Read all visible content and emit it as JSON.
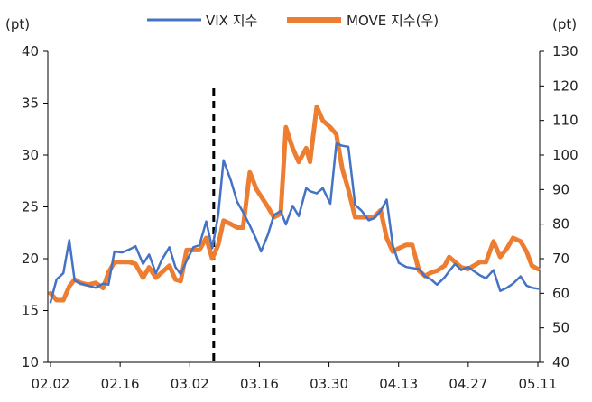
{
  "chart_data": {
    "type": "line",
    "left_unit": "(pt)",
    "right_unit": "(pt)",
    "y_left": {
      "ticks": [
        10,
        15,
        20,
        25,
        30,
        35,
        40
      ],
      "range": [
        10,
        40
      ]
    },
    "y_right": {
      "ticks": [
        40,
        50,
        60,
        70,
        80,
        90,
        100,
        110,
        120,
        130
      ],
      "range": [
        40,
        130
      ]
    },
    "x_ticks": [
      "02.02",
      "02.16",
      "03.02",
      "03.16",
      "03.30",
      "04.13",
      "04.27",
      "05.11"
    ],
    "marker": {
      "label": "03.02 (dashed reference line)",
      "x": 21.7
    },
    "legend": [
      "VIX 지수",
      "MOVE 지수(우)"
    ],
    "colors": {
      "vix": "#4472C4",
      "move": "#ED7D31",
      "marker": "#000000",
      "axis": "#000000"
    },
    "series": [
      {
        "name": "VIX 지수",
        "axis": "left",
        "x": [
          0,
          0.8,
          1.7,
          2.5,
          3.2,
          4,
          5,
          6,
          7,
          7.7,
          8.5,
          9.5,
          10.5,
          11.3,
          12.3,
          13.1,
          14,
          14.8,
          15.8,
          16.6,
          17.3,
          18.1,
          19,
          19.8,
          20.7,
          21.5,
          22.3,
          23,
          24,
          24.8,
          25.6,
          26.5,
          27.4,
          28,
          28.9,
          29.7,
          30.6,
          31.3,
          32.2,
          33,
          34,
          34.5,
          35.4,
          36.2,
          37.2,
          38,
          38.8,
          39.6,
          40.5,
          41.4,
          42.3,
          43,
          43.9,
          44.7,
          45.5,
          46.3,
          47.3,
          48.1,
          49,
          49.8,
          50.6,
          51.4,
          52.4,
          53,
          53.8,
          54.6,
          55.5,
          56.3,
          57.1,
          57.9,
          58.9,
          59.8,
          60.7,
          61.5,
          62.5,
          63.3,
          64,
          64.8
        ],
        "values": [
          15.8,
          18,
          18.6,
          21.8,
          17.9,
          17.6,
          17.4,
          17.2,
          17.6,
          17.5,
          20.7,
          20.6,
          20.9,
          21.2,
          19.5,
          20.4,
          18.6,
          19.9,
          21.1,
          19.2,
          18.5,
          19.8,
          21.1,
          21.3,
          23.6,
          21,
          24.2,
          29.5,
          27.5,
          25.5,
          24.5,
          23.2,
          21.8,
          20.7,
          22.3,
          24.2,
          24.6,
          23.3,
          25.1,
          24.1,
          26.8,
          26.5,
          26.3,
          26.8,
          25.3,
          31.1,
          30.9,
          30.8,
          25.2,
          24.6,
          23.7,
          23.9,
          24.6,
          25.7,
          21.3,
          19.6,
          19.2,
          19.1,
          19,
          18.3,
          18,
          17.5,
          18.2,
          18.8,
          19.5,
          18.9,
          19.2,
          18.8,
          18.4,
          18.1,
          18.9,
          16.9,
          17.2,
          17.6,
          18.3,
          17.4,
          17.2,
          17.1
        ]
      },
      {
        "name": "MOVE 지수(우)",
        "axis": "right",
        "x": [
          0,
          0.8,
          1.7,
          2.5,
          3.2,
          4,
          5,
          6,
          7,
          7.7,
          8.5,
          9.5,
          10.5,
          11.3,
          12.3,
          13.1,
          14,
          14.8,
          15.8,
          16.6,
          17.3,
          18.1,
          19,
          19.8,
          20.7,
          21.5,
          22.3,
          23,
          24,
          24.8,
          25.6,
          26.5,
          27.4,
          28,
          28.9,
          29.7,
          30.6,
          31.3,
          32.2,
          33,
          34,
          34.5,
          35.4,
          36.2,
          37.2,
          38,
          38.8,
          39.6,
          40.5,
          41.4,
          42.3,
          43,
          43.9,
          44.7,
          45.5,
          46.3,
          47.3,
          48.1,
          49,
          49.8,
          50.6,
          51.4,
          52.4,
          53,
          53.8,
          54.6,
          55.5,
          56.3,
          57.1,
          57.9,
          58.9,
          59.8,
          60.7,
          61.5,
          62.5,
          63.3,
          64,
          64.8
        ],
        "values": [
          60,
          58,
          58,
          62,
          64,
          63,
          62.5,
          63,
          61.5,
          66,
          69,
          69,
          69,
          68.5,
          64.5,
          67.5,
          64.5,
          66,
          68,
          64,
          63.5,
          72.5,
          72.5,
          72.5,
          76,
          70,
          74,
          81,
          80,
          79,
          79,
          95,
          90,
          88,
          85,
          82,
          83,
          108,
          102,
          98,
          102,
          98,
          114,
          110,
          108,
          106,
          96,
          90,
          82,
          82,
          82,
          82,
          84,
          76,
          72,
          73,
          74,
          74,
          66.5,
          65,
          66,
          66.5,
          68,
          70.5,
          69,
          67.5,
          67,
          68,
          69,
          69,
          75,
          70.5,
          73,
          76,
          75,
          72,
          68,
          67
        ]
      }
    ]
  }
}
